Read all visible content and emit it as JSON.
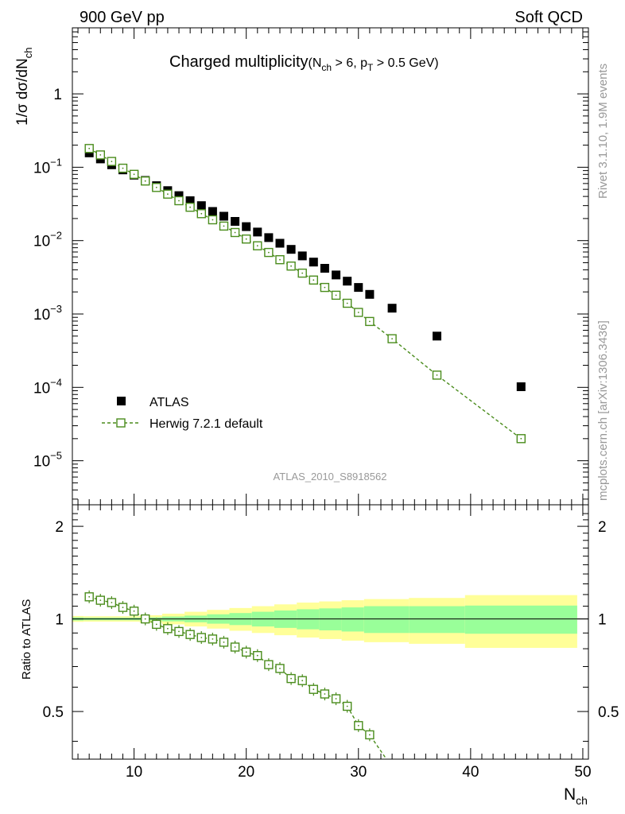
{
  "header": {
    "left": "900 GeV pp",
    "right": "Soft QCD"
  },
  "side": {
    "rivet": "Rivet 3.1.10,  1.9M events",
    "mcplots": "mcplots.cern.ch [arXiv:1306.3436]"
  },
  "colors": {
    "mc": "#4a8c1c",
    "band_inner": "#99ff99",
    "band_outer": "#ffff99",
    "data": "#000000"
  },
  "chart_data": [
    {
      "type": "scatter",
      "panel": "main",
      "title_main": "Charged multiplicity",
      "title_cut": "(N",
      "title_cut_sub1": "ch",
      "title_cut_mid": " > 6, p",
      "title_cut_sub2": "T",
      "title_cut_end": " > 0.5 GeV)",
      "ylabel": "1/σ dσ/dN",
      "ylabel_sub": "ch",
      "yscale": "log",
      "xlim": [
        4.5,
        50.5
      ],
      "ylim_log10": [
        -5.6,
        0.9
      ],
      "ytick_labels": [
        {
          "exp": 0,
          "base": "1",
          "sup": ""
        },
        {
          "exp": -1,
          "base": "10",
          "sup": "−1"
        },
        {
          "exp": -2,
          "base": "10",
          "sup": "−2"
        },
        {
          "exp": -3,
          "base": "10",
          "sup": "−3"
        },
        {
          "exp": -4,
          "base": "10",
          "sup": "−4"
        },
        {
          "exp": -5,
          "base": "10",
          "sup": "−5"
        }
      ],
      "watermark": "ATLAS_2010_S8918562",
      "legend": {
        "placement": "bottom-left",
        "data_label": "ATLAS",
        "mc_label": "Herwig 7.2.1 default"
      },
      "series": [
        {
          "name": "ATLAS",
          "marker": "filled-square",
          "x": [
            6,
            7,
            8,
            9,
            10,
            11,
            12,
            13,
            14,
            15,
            16,
            17,
            18,
            19,
            20,
            21,
            22,
            23,
            24,
            25,
            26,
            27,
            28,
            29,
            30,
            31,
            33,
            37,
            44.5
          ],
          "y": [
            0.157,
            0.13,
            0.108,
            0.092,
            0.078,
            0.066,
            0.056,
            0.048,
            0.041,
            0.035,
            0.03,
            0.025,
            0.0215,
            0.0183,
            0.0155,
            0.0131,
            0.011,
            0.0092,
            0.0076,
            0.0062,
            0.0051,
            0.0042,
            0.0034,
            0.0028,
            0.0023,
            0.00185,
            0.0012,
            0.0005,
            0.000102
          ]
        },
        {
          "name": "Herwig 7.2.1 default",
          "marker": "open-square",
          "line": "dashed",
          "x": [
            6,
            7,
            8,
            9,
            10,
            11,
            12,
            13,
            14,
            15,
            16,
            17,
            18,
            19,
            20,
            21,
            22,
            23,
            24,
            25,
            26,
            27,
            28,
            29,
            30,
            31,
            33,
            37,
            44.5
          ],
          "y": [
            0.18,
            0.147,
            0.12,
            0.097,
            0.08,
            0.065,
            0.053,
            0.043,
            0.035,
            0.0285,
            0.0233,
            0.0192,
            0.0158,
            0.0129,
            0.0105,
            0.0085,
            0.0069,
            0.0055,
            0.0045,
            0.0036,
            0.0029,
            0.0023,
            0.0018,
            0.0014,
            0.00105,
            0.00079,
            0.00046,
            0.000147,
            2e-05
          ]
        }
      ]
    },
    {
      "type": "scatter",
      "panel": "ratio",
      "ylabel": "Ratio to ATLAS",
      "xlabel": "N",
      "xlabel_sub": "ch",
      "xlim": [
        4.5,
        50.5
      ],
      "ylim": [
        0.35,
        2.35
      ],
      "xticks": [
        10,
        20,
        30,
        40,
        50
      ],
      "yticks": [
        0.5,
        1,
        2
      ],
      "yticks_right": [
        0.5,
        1,
        2
      ],
      "bands": [
        {
          "x0": 4.5,
          "x1": 5.5,
          "inner": 0.012,
          "outer": 0.022
        },
        {
          "x0": 5.5,
          "x1": 10.5,
          "inner": 0.01,
          "outer": 0.02
        },
        {
          "x0": 10.5,
          "x1": 12.5,
          "inner": 0.012,
          "outer": 0.028
        },
        {
          "x0": 12.5,
          "x1": 14.5,
          "inner": 0.018,
          "outer": 0.04
        },
        {
          "x0": 14.5,
          "x1": 16.5,
          "inner": 0.025,
          "outer": 0.055
        },
        {
          "x0": 16.5,
          "x1": 18.5,
          "inner": 0.035,
          "outer": 0.07
        },
        {
          "x0": 18.5,
          "x1": 20.5,
          "inner": 0.045,
          "outer": 0.085
        },
        {
          "x0": 20.5,
          "x1": 22.5,
          "inner": 0.055,
          "outer": 0.1
        },
        {
          "x0": 22.5,
          "x1": 24.5,
          "inner": 0.065,
          "outer": 0.115
        },
        {
          "x0": 24.5,
          "x1": 26.5,
          "inner": 0.075,
          "outer": 0.13
        },
        {
          "x0": 26.5,
          "x1": 28.5,
          "inner": 0.082,
          "outer": 0.14
        },
        {
          "x0": 28.5,
          "x1": 30.5,
          "inner": 0.09,
          "outer": 0.15
        },
        {
          "x0": 30.5,
          "x1": 34.5,
          "inner": 0.1,
          "outer": 0.16
        },
        {
          "x0": 34.5,
          "x1": 39.5,
          "inner": 0.1,
          "outer": 0.17
        },
        {
          "x0": 39.5,
          "x1": 49.5,
          "inner": 0.105,
          "outer": 0.195
        }
      ],
      "series": [
        {
          "name": "Herwig 7.2.1 default / ATLAS",
          "marker": "open-square",
          "line": "dashed",
          "x": [
            6,
            7,
            8,
            9,
            10,
            11,
            12,
            13,
            14,
            15,
            16,
            17,
            18,
            19,
            20,
            21,
            22,
            23,
            24,
            25,
            26,
            27,
            28,
            29,
            30,
            31,
            32.5
          ],
          "y": [
            1.18,
            1.15,
            1.13,
            1.09,
            1.06,
            1.0,
            0.96,
            0.93,
            0.91,
            0.89,
            0.87,
            0.86,
            0.84,
            0.81,
            0.78,
            0.76,
            0.71,
            0.69,
            0.64,
            0.63,
            0.59,
            0.57,
            0.55,
            0.52,
            0.45,
            0.42,
            0.35
          ]
        }
      ]
    }
  ]
}
